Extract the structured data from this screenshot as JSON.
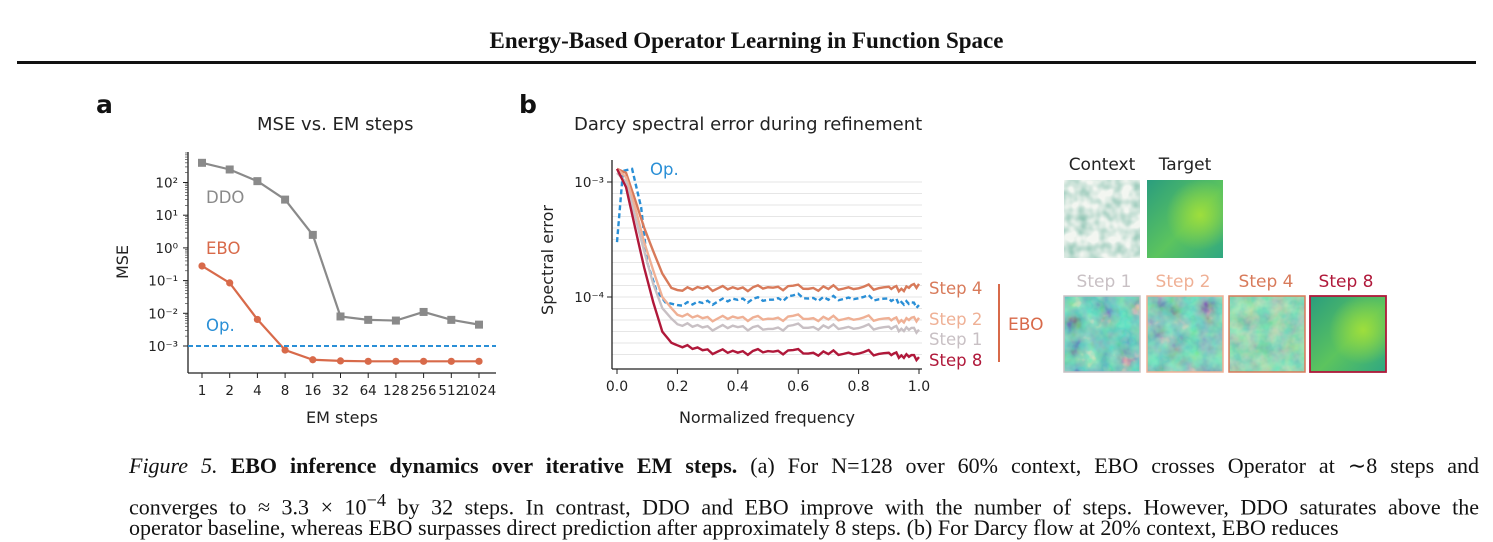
{
  "header": {
    "title": "Energy-Based Operator Learning in Function Space"
  },
  "panel_a": {
    "letter": "a",
    "title": "MSE vs. EM steps"
  },
  "panel_b": {
    "letter": "b",
    "title": "Darcy spectral error during refinement",
    "context_label": "Context",
    "target_label": "Target",
    "step_labels": [
      "Step 1",
      "Step 2",
      "Step 4",
      "Step 8"
    ],
    "ebo_bracket_label": "EBO"
  },
  "chart_data": [
    {
      "type": "line",
      "xlabel": "EM steps",
      "ylabel": "MSE",
      "y_scale": "log",
      "categories": [
        "1",
        "2",
        "4",
        "8",
        "16",
        "32",
        "64",
        "128",
        "256",
        "512",
        "1024"
      ],
      "y_tick_labels": [
        "10⁻³",
        "10⁻²",
        "10⁻¹",
        "10⁰",
        "10¹",
        "10²"
      ],
      "series": [
        {
          "name": "DDO",
          "color": "#8a8a8a",
          "marker": "square",
          "values": [
            400,
            250,
            110,
            30,
            2.5,
            0.008,
            0.0063,
            0.006,
            0.011,
            0.0063,
            0.0045
          ]
        },
        {
          "name": "EBO",
          "color": "#d86a4a",
          "marker": "circle",
          "values": [
            0.28,
            0.085,
            0.0065,
            0.00075,
            0.00038,
            0.00035,
            0.00034,
            0.00034,
            0.00034,
            0.00034,
            0.00034
          ]
        },
        {
          "name": "Op.",
          "color": "#2a8fd6",
          "style": "dashed",
          "values": [
            0.001,
            0.001,
            0.001,
            0.001,
            0.001,
            0.001,
            0.001,
            0.001,
            0.001,
            0.001,
            0.001
          ]
        }
      ]
    },
    {
      "type": "line",
      "xlabel": "Normalized frequency",
      "ylabel": "Spectral error",
      "y_scale": "log",
      "xlim": [
        0,
        1
      ],
      "x_tick_labels": [
        "0.0",
        "0.2",
        "0.4",
        "0.6",
        "0.8",
        "1.0"
      ],
      "y_tick_labels": [
        "10⁻³",
        "10⁻⁴"
      ],
      "series": [
        {
          "name": "Op.",
          "color": "#2a8fd6",
          "style": "dashed",
          "x": [
            0,
            0.02,
            0.05,
            0.08,
            0.1,
            0.13,
            0.16,
            0.2,
            0.3,
            0.4,
            0.5,
            0.6,
            0.7,
            0.8,
            0.9,
            0.95,
            1.0
          ],
          "values": [
            0.0003,
            0.00125,
            0.0013,
            0.0006,
            0.0002,
            0.000115,
            9e-05,
            8.5e-05,
            9e-05,
            9.5e-05,
            9.5e-05,
            0.0001,
            9.5e-05,
            0.0001,
            9.5e-05,
            9e-05,
            8.5e-05
          ]
        },
        {
          "name": "Step 4",
          "color": "#d87a5a",
          "x": [
            0,
            0.03,
            0.06,
            0.09,
            0.12,
            0.15,
            0.18,
            0.2,
            0.3,
            0.4,
            0.5,
            0.6,
            0.7,
            0.8,
            0.9,
            0.95,
            1.0
          ],
          "values": [
            0.0013,
            0.0012,
            0.0007,
            0.0004,
            0.00025,
            0.00016,
            0.00012,
            0.000115,
            0.00012,
            0.000118,
            0.000122,
            0.00012,
            0.000118,
            0.000122,
            0.00012,
            0.000118,
            0.00013
          ]
        },
        {
          "name": "Step 2",
          "color": "#efb095",
          "x": [
            0,
            0.03,
            0.06,
            0.09,
            0.12,
            0.15,
            0.18,
            0.2,
            0.3,
            0.4,
            0.5,
            0.6,
            0.7,
            0.8,
            0.9,
            0.95,
            1.0
          ],
          "values": [
            0.0013,
            0.0011,
            0.0006,
            0.0003,
            0.00017,
            0.0001,
            8e-05,
            7e-05,
            6.5e-05,
            6.6e-05,
            6.5e-05,
            6.6e-05,
            6.4e-05,
            6.6e-05,
            6.4e-05,
            6.3e-05,
            6.6e-05
          ]
        },
        {
          "name": "Step 1",
          "color": "#c8c0c4",
          "x": [
            0,
            0.03,
            0.06,
            0.09,
            0.12,
            0.15,
            0.18,
            0.2,
            0.3,
            0.4,
            0.5,
            0.6,
            0.7,
            0.8,
            0.9,
            0.95,
            1.0
          ],
          "values": [
            0.0012,
            0.001,
            0.0005,
            0.00025,
            0.00013,
            8e-05,
            6.5e-05,
            5.8e-05,
            5.4e-05,
            5.5e-05,
            5.3e-05,
            5.5e-05,
            5.4e-05,
            5.5e-05,
            5.4e-05,
            5.3e-05,
            5.2e-05
          ]
        },
        {
          "name": "Step 8",
          "color": "#b0183a",
          "x": [
            0,
            0.03,
            0.06,
            0.09,
            0.12,
            0.15,
            0.18,
            0.2,
            0.3,
            0.4,
            0.5,
            0.6,
            0.7,
            0.8,
            0.9,
            0.95,
            1.0
          ],
          "values": [
            0.0013,
            0.0009,
            0.0004,
            0.00018,
            9e-05,
            5e-05,
            4e-05,
            3.8e-05,
            3.4e-05,
            3.3e-05,
            3.4e-05,
            3.3e-05,
            3.2e-05,
            3.3e-05,
            3.2e-05,
            3.1e-05,
            3e-05
          ]
        }
      ]
    }
  ],
  "caption": {
    "line1_lead": "Figure 5.",
    "line1_bold": "EBO inference dynamics over iterative EM steps.",
    "line1_rest": "(a) For N=128 over 60% context, EBO crosses Operator at ∼8 steps and",
    "line2_a": "converges to ≈ 3.3 × 10",
    "line2_sup": "−4",
    "line2_b": "by 32 steps. In contrast, DDO and EBO improve with the number of steps. However, DDO saturates above the",
    "line3": "operator baseline, whereas EBO surpasses direct prediction after approximately 8 steps. (b) For Darcy flow at 20% context, EBO reduces"
  }
}
